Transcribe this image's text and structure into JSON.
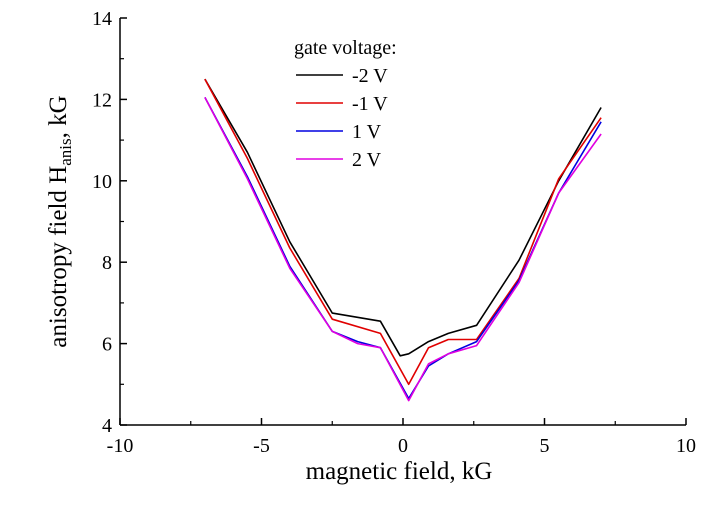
{
  "chart_data": {
    "type": "line",
    "xlabel": "magnetic field, kG",
    "ylabel": {
      "main": "anisotropy field H",
      "subscript": "anis",
      "suffix": ", kG"
    },
    "xlim": [
      -10,
      10
    ],
    "ylim": [
      4,
      14
    ],
    "xticks": [
      -10,
      -5,
      0,
      5,
      10
    ],
    "yticks": [
      4,
      6,
      8,
      10,
      12,
      14
    ],
    "grid": false,
    "legend": {
      "title": "gate voltage:",
      "placement": "top-center"
    },
    "series": [
      {
        "name": "-2 V",
        "color": "#000000",
        "x": [
          -7.0,
          -5.5,
          -4.0,
          -2.5,
          -0.8,
          -0.1,
          0.2,
          0.9,
          1.6,
          2.6,
          4.1,
          5.5,
          7.0
        ],
        "y": [
          12.5,
          10.7,
          8.5,
          6.75,
          6.55,
          5.7,
          5.75,
          6.05,
          6.25,
          6.45,
          8.05,
          10.0,
          11.8
        ]
      },
      {
        "name": "-1 V",
        "color": "#e00000",
        "x": [
          -7.0,
          -5.5,
          -4.0,
          -2.5,
          -0.8,
          0.2,
          0.9,
          1.6,
          2.6,
          4.1,
          5.5,
          7.0
        ],
        "y": [
          12.5,
          10.55,
          8.35,
          6.6,
          6.25,
          5.0,
          5.9,
          6.1,
          6.1,
          7.6,
          10.05,
          11.55
        ]
      },
      {
        "name": "1 V",
        "color": "#0000e0",
        "x": [
          -7.0,
          -5.5,
          -4.0,
          -2.5,
          -1.6,
          -0.8,
          0.2,
          0.9,
          1.6,
          2.6,
          4.1,
          5.5,
          7.0
        ],
        "y": [
          12.05,
          10.1,
          7.9,
          6.3,
          6.05,
          5.9,
          4.65,
          5.45,
          5.75,
          6.05,
          7.55,
          9.7,
          11.45
        ]
      },
      {
        "name": "2 V",
        "color": "#e000e0",
        "x": [
          -7.0,
          -5.5,
          -4.0,
          -2.5,
          -1.6,
          -0.8,
          0.2,
          0.9,
          1.6,
          2.6,
          4.1,
          5.5,
          7.0
        ],
        "y": [
          12.05,
          10.05,
          7.85,
          6.3,
          6.0,
          5.9,
          4.6,
          5.5,
          5.75,
          5.95,
          7.5,
          9.7,
          11.15
        ]
      }
    ]
  }
}
